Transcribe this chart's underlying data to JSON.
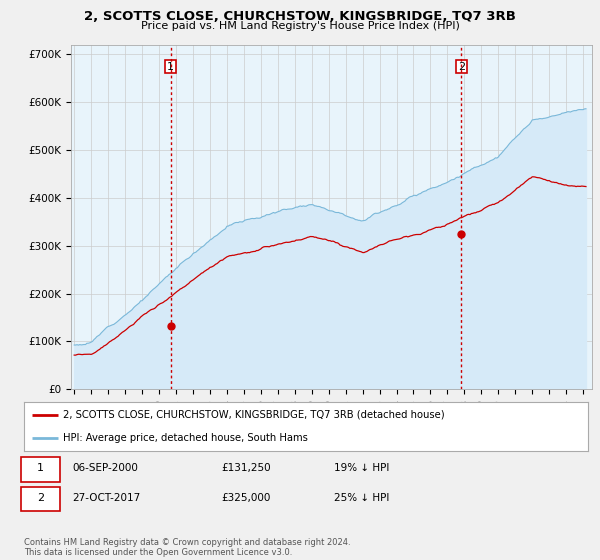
{
  "title": "2, SCOTTS CLOSE, CHURCHSTOW, KINGSBRIDGE, TQ7 3RB",
  "subtitle": "Price paid vs. HM Land Registry's House Price Index (HPI)",
  "ylabel_ticks": [
    "£0",
    "£100K",
    "£200K",
    "£300K",
    "£400K",
    "£500K",
    "£600K",
    "£700K"
  ],
  "ytick_values": [
    0,
    100000,
    200000,
    300000,
    400000,
    500000,
    600000,
    700000
  ],
  "ylim": [
    0,
    720000
  ],
  "xlim_start": 1994.8,
  "xlim_end": 2025.5,
  "hpi_color": "#7ab8d9",
  "hpi_fill_color": "#d6eaf8",
  "price_color": "#cc0000",
  "sale1_x": 2000.68,
  "sale1_y": 131250,
  "sale2_x": 2017.83,
  "sale2_y": 325000,
  "sale1_label": "06-SEP-2000",
  "sale1_price": "£131,250",
  "sale1_hpi": "19% ↓ HPI",
  "sale2_label": "27-OCT-2017",
  "sale2_price": "£325,000",
  "sale2_hpi": "25% ↓ HPI",
  "legend_line1": "2, SCOTTS CLOSE, CHURCHSTOW, KINGSBRIDGE, TQ7 3RB (detached house)",
  "legend_line2": "HPI: Average price, detached house, South Hams",
  "footnote": "Contains HM Land Registry data © Crown copyright and database right 2024.\nThis data is licensed under the Open Government Licence v3.0.",
  "bg_color": "#f0f0f0",
  "plot_bg_color": "#e8f4fb"
}
